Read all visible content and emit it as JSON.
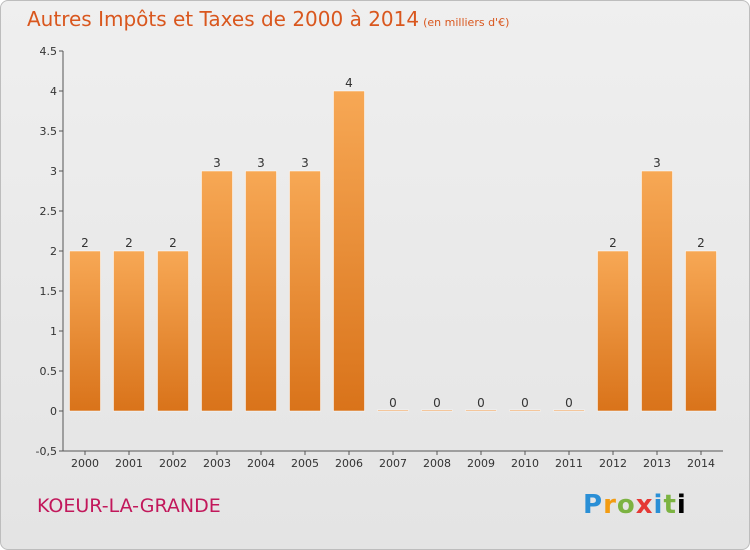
{
  "header": {
    "title": "Autres Impôts et Taxes de 2000 à 2014",
    "unit": "(en milliers d'€)"
  },
  "footer": {
    "commune": "KOEUR-LA-GRANDE",
    "logo": "Proxiti"
  },
  "chart_data": {
    "type": "bar",
    "categories": [
      "2000",
      "2001",
      "2002",
      "2003",
      "2004",
      "2005",
      "2006",
      "2007",
      "2008",
      "2009",
      "2010",
      "2011",
      "2012",
      "2013",
      "2014"
    ],
    "values": [
      2,
      2,
      2,
      3,
      3,
      3,
      4,
      0,
      0,
      0,
      0,
      0,
      2,
      3,
      2
    ],
    "value_labels": [
      "2",
      "2",
      "2",
      "3",
      "3",
      "3",
      "4",
      "0",
      "0",
      "0",
      "0",
      "0",
      "2",
      "3",
      "2"
    ],
    "y_ticks": [
      -0.5,
      0,
      0.5,
      1,
      1.5,
      2,
      2.5,
      3,
      3.5,
      4,
      4.5
    ],
    "y_tick_labels": [
      "-0,5",
      "0",
      "0.5",
      "1",
      "1.5",
      "2",
      "2.5",
      "3",
      "3.5",
      "4",
      "4.5"
    ],
    "ylim": [
      -0.5,
      4.5
    ],
    "grid": false,
    "colors": {
      "bar_light": "#f7a855",
      "bar_dark": "#d9731a",
      "text": "#333333"
    }
  }
}
